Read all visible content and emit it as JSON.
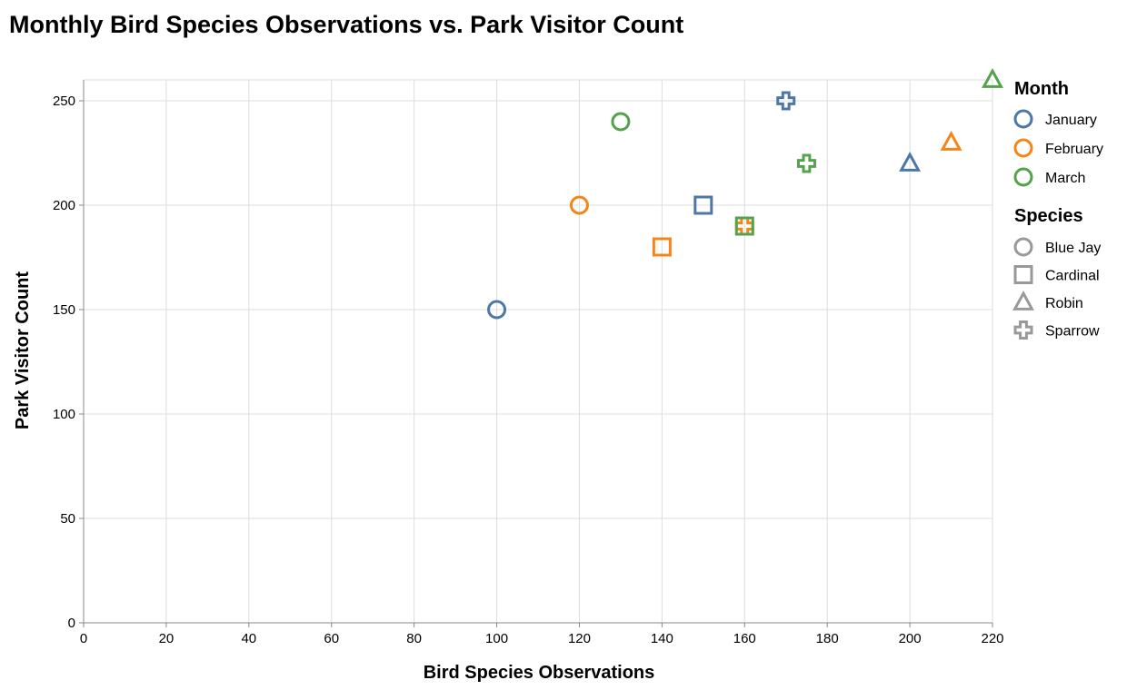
{
  "chart_data": {
    "type": "scatter",
    "title": "Monthly Bird Species Observations vs. Park Visitor Count",
    "xlabel": "Bird Species Observations",
    "ylabel": "Park Visitor Count",
    "xlim": [
      0,
      220
    ],
    "ylim": [
      0,
      260
    ],
    "x_ticks": [
      0,
      20,
      40,
      60,
      80,
      100,
      120,
      140,
      160,
      180,
      200,
      220
    ],
    "y_ticks": [
      0,
      50,
      100,
      150,
      200,
      250
    ],
    "grid": true,
    "legend_placement": "right",
    "color_legend": {
      "title": "Month",
      "entries": [
        {
          "name": "January",
          "color": "#4c78a8"
        },
        {
          "name": "February",
          "color": "#f58518"
        },
        {
          "name": "March",
          "color": "#54a24b"
        }
      ]
    },
    "shape_legend": {
      "title": "Species",
      "entries": [
        {
          "name": "Blue Jay",
          "shape": "circle"
        },
        {
          "name": "Cardinal",
          "shape": "square"
        },
        {
          "name": "Robin",
          "shape": "triangle"
        },
        {
          "name": "Sparrow",
          "shape": "cross"
        }
      ]
    },
    "points": [
      {
        "month": "January",
        "species": "Blue Jay",
        "x": 100,
        "y": 150
      },
      {
        "month": "January",
        "species": "Cardinal",
        "x": 150,
        "y": 200
      },
      {
        "month": "January",
        "species": "Robin",
        "x": 200,
        "y": 220
      },
      {
        "month": "January",
        "species": "Sparrow",
        "x": 170,
        "y": 250
      },
      {
        "month": "February",
        "species": "Blue Jay",
        "x": 120,
        "y": 200
      },
      {
        "month": "February",
        "species": "Cardinal",
        "x": 140,
        "y": 180
      },
      {
        "month": "February",
        "species": "Robin",
        "x": 210,
        "y": 230
      },
      {
        "month": "February",
        "species": "Sparrow",
        "x": 160,
        "y": 190
      },
      {
        "month": "March",
        "species": "Blue Jay",
        "x": 130,
        "y": 240
      },
      {
        "month": "March",
        "species": "Cardinal",
        "x": 160,
        "y": 190
      },
      {
        "month": "March",
        "species": "Robin",
        "x": 220,
        "y": 260
      },
      {
        "month": "March",
        "species": "Sparrow",
        "x": 175,
        "y": 220
      }
    ]
  }
}
